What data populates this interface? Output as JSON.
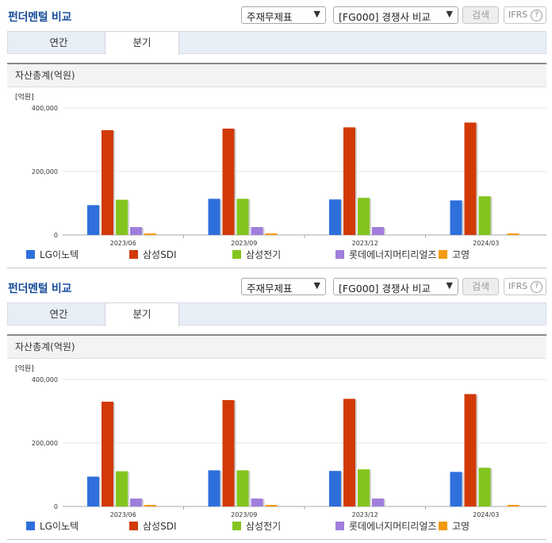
{
  "header": {
    "title": "펀더멘털 비교",
    "select_statement": "주재무제표",
    "select_compare": "[FG000] 경쟁사 비교",
    "search_label": "검색",
    "ifrs_label": "IFRS",
    "help_glyph": "?"
  },
  "tabs": [
    {
      "label": "연간"
    },
    {
      "label": "분기",
      "active": true
    }
  ],
  "section_title": "자산총계(억원)",
  "chart_data": [
    {
      "type": "bar",
      "unit_label": "[억원]",
      "categories": [
        "2023/06",
        "2023/09",
        "2023/12",
        "2024/03"
      ],
      "series": [
        {
          "name": "LG이노텍",
          "color": "#2e6fdc",
          "values": [
            94000,
            114000,
            112000,
            109000
          ]
        },
        {
          "name": "삼성SDI",
          "color": "#d13a07",
          "values": [
            330000,
            335000,
            339000,
            354000
          ]
        },
        {
          "name": "삼성전기",
          "color": "#83c51e",
          "values": [
            111000,
            114000,
            117000,
            122000
          ]
        },
        {
          "name": "롯데에너지머티리얼즈",
          "color": "#a07edb",
          "values": [
            25000,
            25000,
            25000,
            0
          ]
        },
        {
          "name": "고영",
          "color": "#f29b12",
          "values": [
            5000,
            5000,
            0,
            5000
          ]
        }
      ],
      "ylim": [
        0,
        400000
      ],
      "yticks": [
        "400,000",
        "200,000",
        "0"
      ],
      "legend": "bottom"
    },
    {
      "type": "bar",
      "unit_label": "[억원]",
      "categories": [
        "2023/06",
        "2023/09",
        "2023/12",
        "2024/03"
      ],
      "series": [
        {
          "name": "LG이노텍",
          "color": "#2e6fdc",
          "values": [
            94000,
            114000,
            112000,
            109000
          ]
        },
        {
          "name": "삼성SDI",
          "color": "#d13a07",
          "values": [
            330000,
            335000,
            339000,
            354000
          ]
        },
        {
          "name": "삼성전기",
          "color": "#83c51e",
          "values": [
            111000,
            114000,
            117000,
            122000
          ]
        },
        {
          "name": "롯데에너지머티리얼즈",
          "color": "#a07edb",
          "values": [
            25000,
            25000,
            25000,
            0
          ]
        },
        {
          "name": "고영",
          "color": "#f29b12",
          "values": [
            5000,
            5000,
            0,
            5000
          ]
        }
      ],
      "ylim": [
        0,
        400000
      ],
      "yticks": [
        "400,000",
        "200,000",
        "0"
      ],
      "legend": "bottom"
    }
  ]
}
